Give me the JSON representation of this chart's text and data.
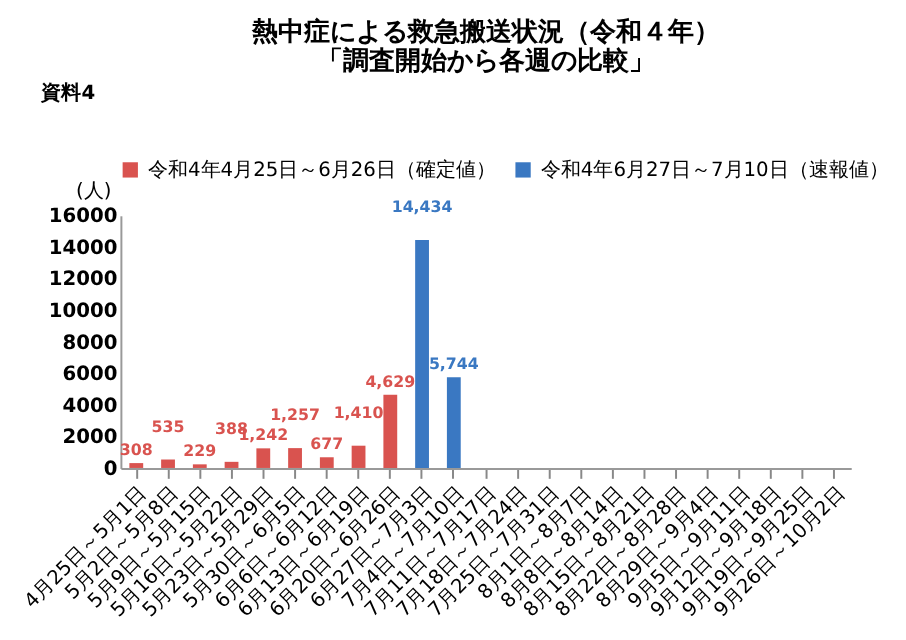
{
  "chart_data": {
    "type": "bar",
    "title": [
      "熱中症による救急搬送状況（令和４年）",
      "「調査開始から各週の比較」"
    ],
    "ylabel": "(人)",
    "annotations": [
      "資料4"
    ],
    "categories": [
      "4月25日～5月1日",
      "5月2日～5月8日",
      "5月9日～5月15日",
      "5月16日～5月22日",
      "5月23日～5月29日",
      "5月30日～6月5日",
      "6月6日～6月12日",
      "6月13日～6月19日",
      "6月20日～6月26日",
      "6月27日～7月3日",
      "7月4日～7月10日",
      "7月11日～7月17日",
      "7月18日～7月24日",
      "7月25日～7月31日",
      "8月1日～8月7日",
      "8月8日～8月14日",
      "8月15日～8月21日",
      "8月22日～8月28日",
      "8月29日～9月4日",
      "9月5日～9月11日",
      "9月12日～9月18日",
      "9月19日～9月25日",
      "9月26日～10月2日"
    ],
    "series": [
      {
        "name": "令和4年4月25日～6月26日（確定値）",
        "color": "#d9534f",
        "values": [
          308,
          535,
          229,
          388,
          1242,
          1257,
          677,
          1410,
          4629,
          null,
          null,
          null,
          null,
          null,
          null,
          null,
          null,
          null,
          null,
          null,
          null,
          null,
          null
        ],
        "value_labels": [
          "308",
          "535",
          "229",
          "388",
          "1,242",
          "1,257",
          "677",
          "1,410",
          "4,629",
          null,
          null,
          null,
          null,
          null,
          null,
          null,
          null,
          null,
          null,
          null,
          null,
          null,
          null
        ]
      },
      {
        "name": "令和4年6月27日～7月10日（速報値）",
        "color": "#3a78c2",
        "values": [
          null,
          null,
          null,
          null,
          null,
          null,
          null,
          null,
          null,
          14434,
          5744,
          null,
          null,
          null,
          null,
          null,
          null,
          null,
          null,
          null,
          null,
          null,
          null
        ],
        "value_labels": [
          null,
          null,
          null,
          null,
          null,
          null,
          null,
          null,
          null,
          "14,434",
          "5,744",
          null,
          null,
          null,
          null,
          null,
          null,
          null,
          null,
          null,
          null,
          null,
          null
        ]
      }
    ],
    "ylim": [
      0,
      16000
    ],
    "yticks": [
      0,
      2000,
      4000,
      6000,
      8000,
      10000,
      12000,
      14000,
      16000
    ],
    "data_labels": true,
    "legend": "top",
    "grid": false
  }
}
